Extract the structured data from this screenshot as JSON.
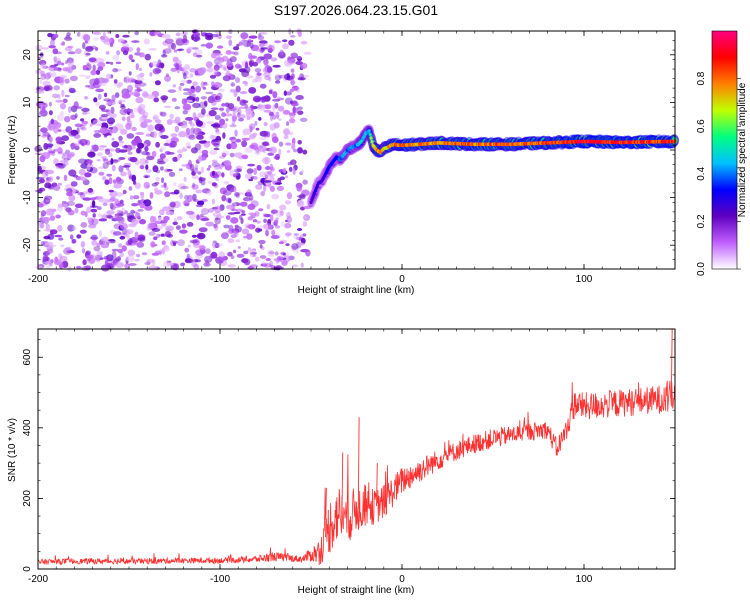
{
  "title": "S197.2026.064.23.15.G01",
  "chart_data": [
    {
      "type": "heatmap",
      "xlabel": "Height of straight line (km)",
      "ylabel": "Frequency (Hz)",
      "xlim": [
        -200,
        150
      ],
      "ylim": [
        -25,
        25
      ],
      "xticks": [
        -200,
        -100,
        0,
        100
      ],
      "yticks": [
        -20,
        -10,
        0,
        10,
        20
      ],
      "colorbar": {
        "label": "Normalized spectral amplitude",
        "range": [
          0,
          1
        ],
        "ticks": [
          "0.0",
          "0.2",
          "0.4",
          "0.6",
          "0.8"
        ],
        "stops": [
          "#ffffff",
          "#c060ff",
          "#6000c0",
          "#0000ff",
          "#00c0ff",
          "#00ff80",
          "#c0ff00",
          "#ff8000",
          "#ff0000",
          "#ff0080"
        ]
      },
      "ridge": {
        "x": [
          -50,
          -48,
          -46,
          -44,
          -42,
          -40,
          -38,
          -36,
          -34,
          -32,
          -30,
          -28,
          -26,
          -24,
          -22,
          -20,
          -18,
          -16,
          -14,
          -12,
          -10,
          -8,
          -6,
          -4,
          -2,
          0,
          10,
          20,
          40,
          60,
          80,
          100,
          120,
          150
        ],
        "y": [
          -11,
          -9,
          -7,
          -6.5,
          -5,
          -3.5,
          -2.5,
          -1.5,
          -2,
          -1,
          0,
          0.5,
          0.8,
          1.2,
          2,
          3.5,
          4,
          1,
          0,
          -0.5,
          0.3,
          0.5,
          1,
          1.2,
          1,
          1,
          1.2,
          1.5,
          1.2,
          1.2,
          1.5,
          1.8,
          1.6,
          1.8
        ],
        "amplitude": [
          0.25,
          0.3,
          0.3,
          0.28,
          0.3,
          0.35,
          0.38,
          0.35,
          0.4,
          0.45,
          0.4,
          0.45,
          0.4,
          0.45,
          0.5,
          0.5,
          0.45,
          0.75,
          0.8,
          0.82,
          0.7,
          0.75,
          0.8,
          0.82,
          0.82,
          0.85,
          0.8,
          0.82,
          0.85,
          0.84,
          0.85,
          0.95,
          0.92,
          0.9
        ]
      },
      "noise_region": [
        -200,
        -55
      ],
      "noise_amplitude_max": 0.2
    },
    {
      "type": "line",
      "xlabel": "Height of straight line (km)",
      "ylabel": "SNR (10 * v/v)",
      "xlim": [
        -200,
        150
      ],
      "ylim": [
        0,
        680
      ],
      "xticks": [
        -200,
        -100,
        0,
        100
      ],
      "yticks": [
        0,
        200,
        400,
        600
      ],
      "color": "#ff3030",
      "series": [
        {
          "name": "SNR",
          "x": [
            -200,
            -180,
            -160,
            -140,
            -120,
            -100,
            -80,
            -70,
            -60,
            -55,
            -50,
            -45,
            -42,
            -40,
            -35,
            -30,
            -25,
            -20,
            -15,
            -10,
            -5,
            0,
            10,
            20,
            30,
            40,
            50,
            60,
            70,
            80,
            85,
            90,
            95,
            100,
            110,
            120,
            130,
            140,
            150
          ],
          "y": [
            20,
            22,
            22,
            22,
            24,
            24,
            28,
            35,
            30,
            28,
            40,
            50,
            90,
            120,
            160,
            140,
            170,
            180,
            175,
            190,
            220,
            250,
            280,
            310,
            335,
            355,
            370,
            380,
            390,
            395,
            340,
            390,
            470,
            460,
            465,
            470,
            475,
            480,
            490
          ]
        }
      ],
      "spikes": [
        {
          "x": -42,
          "y": 230
        },
        {
          "x": -33,
          "y": 330
        },
        {
          "x": -24,
          "y": 430
        },
        {
          "x": -14,
          "y": 300
        },
        {
          "x": 148,
          "y": 680
        }
      ],
      "noise_amplitude": [
        8,
        8,
        8,
        8,
        8,
        8,
        10,
        14,
        10,
        10,
        20,
        40,
        60,
        80,
        80,
        70,
        70,
        60,
        50,
        50,
        45,
        40,
        35,
        30,
        28,
        28,
        28,
        26,
        26,
        26,
        30,
        30,
        40,
        40,
        40,
        40,
        40,
        40,
        50
      ]
    }
  ]
}
